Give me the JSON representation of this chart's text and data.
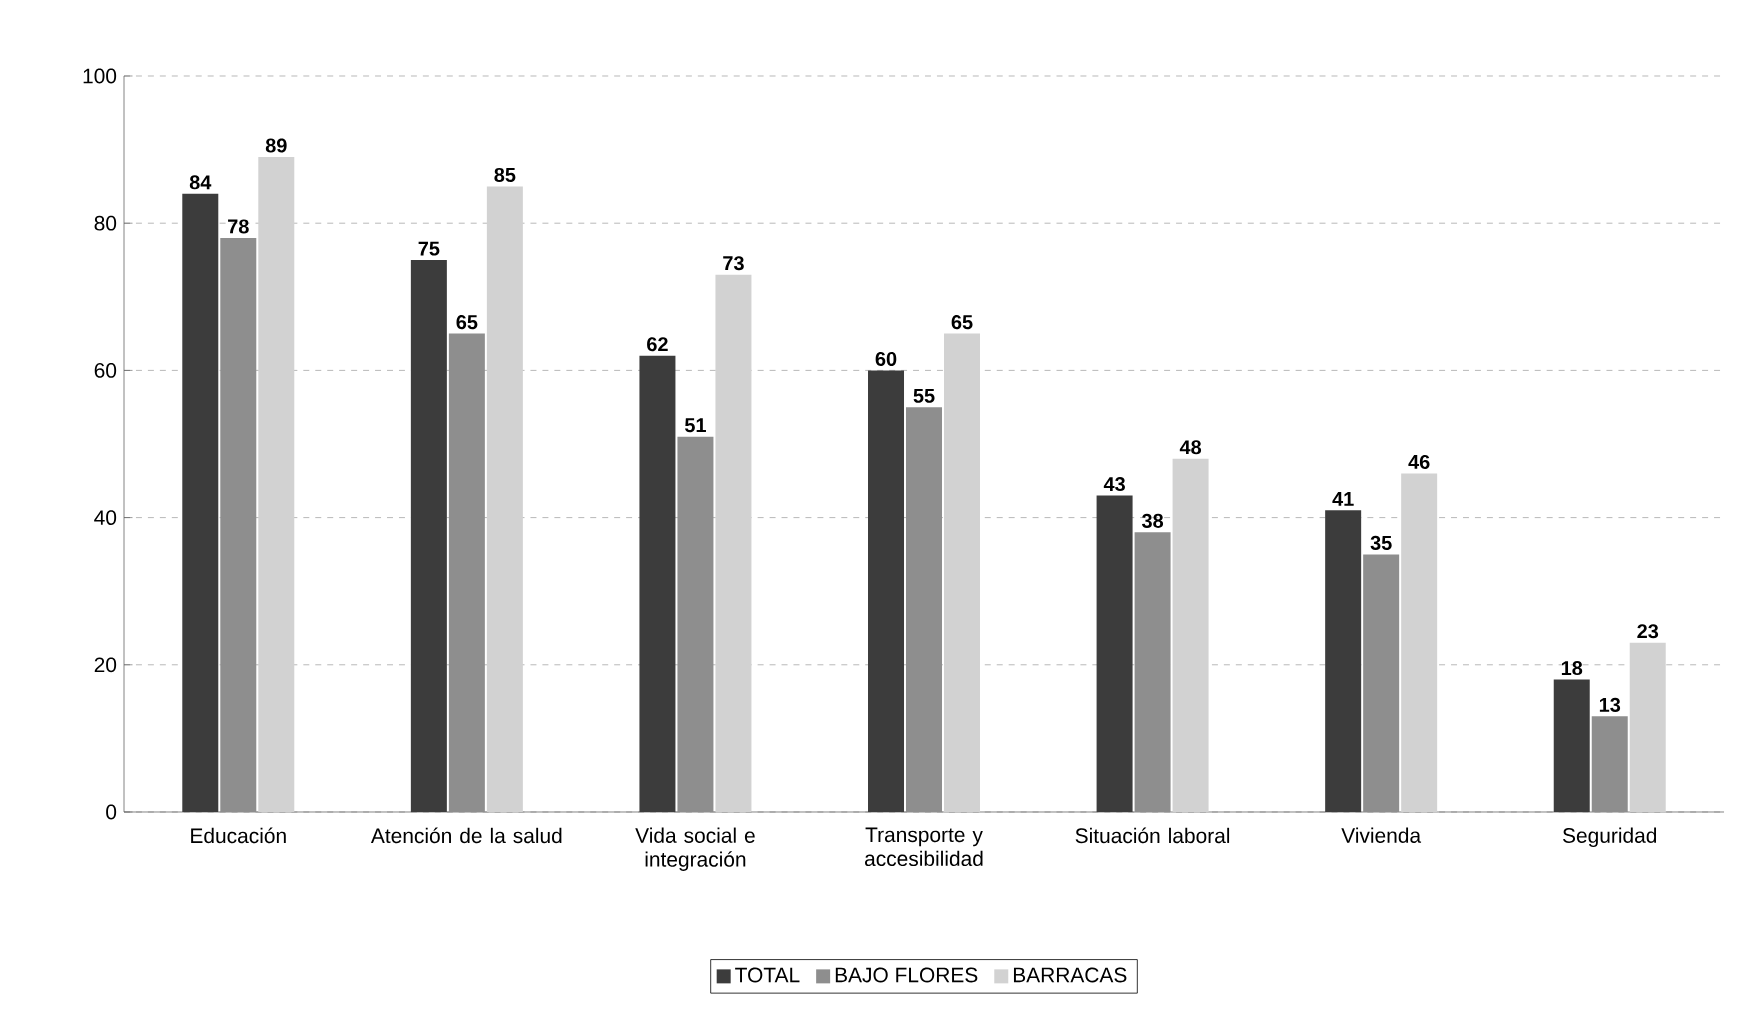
{
  "chart_data": {
    "type": "bar",
    "categories": [
      "Educación",
      "Atención de la salud",
      "Vida social e integración",
      "Transporte y accesibilidad",
      "Situación laboral",
      "Vivienda",
      "Seguridad"
    ],
    "series": [
      {
        "name": "TOTAL",
        "color": "#3c3c3c",
        "values": [
          84,
          75,
          62,
          60,
          43,
          41,
          18
        ]
      },
      {
        "name": "BAJO FLORES",
        "color": "#8e8e8e",
        "values": [
          78,
          65,
          51,
          55,
          38,
          35,
          13
        ]
      },
      {
        "name": "BARRACAS",
        "color": "#d2d2d2",
        "values": [
          89,
          85,
          73,
          65,
          48,
          46,
          23
        ]
      }
    ],
    "ylim": [
      0,
      100
    ],
    "yticks": [
      0,
      20,
      40,
      60,
      80,
      100
    ],
    "grid": "y",
    "legend": "bottom",
    "data_labels": true
  }
}
